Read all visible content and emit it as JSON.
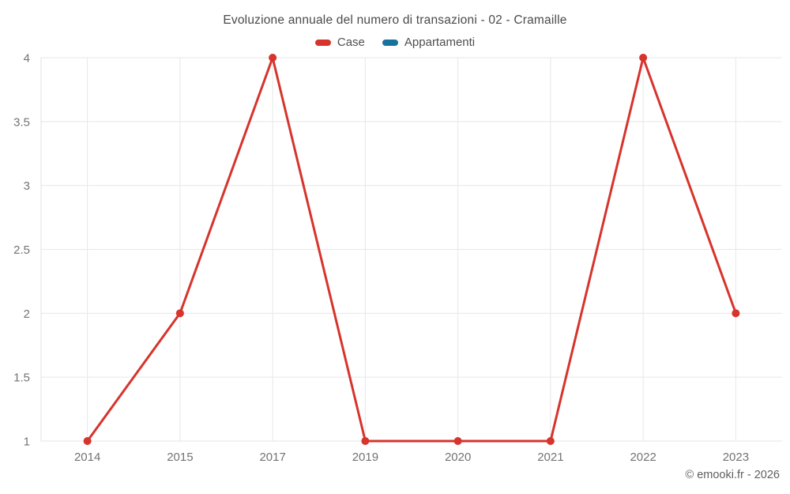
{
  "title": "Evoluzione annuale del numero di transazioni - 02 - Cramaille",
  "legend": {
    "items": [
      {
        "label": "Case",
        "color": "#d6342c"
      },
      {
        "label": "Appartamenti",
        "color": "#17739e"
      }
    ]
  },
  "copyright": "© emooki.fr - 2026",
  "colors": {
    "case_red": "#d6342c",
    "appartamenti_blue": "#17739e",
    "gridline": "#e7e7e7",
    "axis_line": "#e0e0e0",
    "axis_text": "#737373",
    "title_text": "#4a4a4a"
  },
  "chart_data": {
    "type": "line",
    "title": "Evoluzione annuale del numero di transazioni - 02 - Cramaille",
    "categories": [
      "2014",
      "2015",
      "2017",
      "2019",
      "2020",
      "2021",
      "2022",
      "2023"
    ],
    "series": [
      {
        "name": "Case",
        "color": "#d6342c",
        "values": [
          1,
          2,
          4,
          1,
          1,
          1,
          4,
          2
        ]
      },
      {
        "name": "Appartamenti",
        "color": "#17739e",
        "values": []
      }
    ],
    "xlabel": "",
    "ylabel": "",
    "ylim": [
      1,
      4
    ],
    "yticks": [
      1,
      1.5,
      2,
      2.5,
      3,
      3.5,
      4
    ],
    "ytick_labels": [
      "1",
      "1.5",
      "2",
      "2.5",
      "3",
      "3.5",
      "4"
    ],
    "grid": true,
    "legend_position": "top",
    "marker": "circle"
  }
}
